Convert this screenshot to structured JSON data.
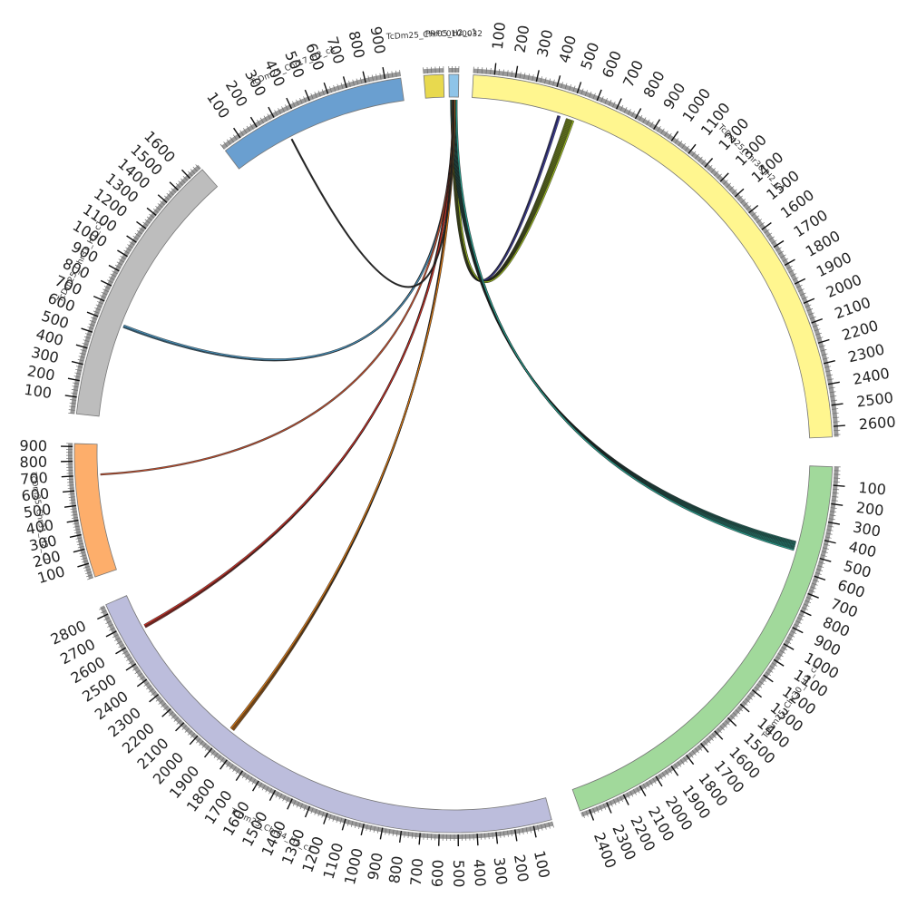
{
  "segments": [
    {
      "id": "chr30_h2",
      "name": "TcDm25_Chr30_H2_c1",
      "length": 2650,
      "major_step": 100,
      "color": "#fff68f"
    },
    {
      "id": "chr30_h1",
      "name": "TcDm25_Chr30_H1_c1",
      "length": 2450,
      "major_step": 100,
      "color": "#a1d99b"
    },
    {
      "id": "chr04_h1",
      "name": "TcDm25_Chr04_H1_c1",
      "length": 2850,
      "major_step": 100,
      "color": "#bcbddc"
    },
    {
      "id": "chr31_h2",
      "name": "TcDm25_Chr31_H2_c1",
      "length": 920,
      "major_step": 100,
      "color": "#fdae6b"
    },
    {
      "id": "chr31_h1",
      "name": "TcDm25_Chr31_H1_c1",
      "length": 1690,
      "major_step": 100,
      "color": "#bdbdbd"
    },
    {
      "id": "chr17_h2",
      "name": "TcDm25_Chr17_H2_c1",
      "length": 980,
      "major_step": 100,
      "color": "#6a9fd0"
    },
    {
      "id": "chr05_h2",
      "name": "TcDm25_Chr05_H2_c1",
      "length": 100,
      "major_step": 0,
      "color": "#e8d94e"
    },
    {
      "id": "prfc",
      "name": "PRFC0100032",
      "length": 60,
      "major_step": 0,
      "color": "#8ec4e8"
    }
  ],
  "links": [
    {
      "source": "prfc",
      "source_pos": 30,
      "target": "chr30_h2",
      "target_pos": 450,
      "color": "#3a3a9a",
      "count": 3
    },
    {
      "source": "prfc",
      "source_pos": 30,
      "target": "chr30_h2",
      "target_pos": 510,
      "color": "#9ab820",
      "count": 10
    },
    {
      "source": "prfc",
      "source_pos": 30,
      "target": "chr30_h1",
      "target_pos": 470,
      "color": "#2a9a8a",
      "count": 12
    },
    {
      "source": "prfc",
      "source_pos": 30,
      "target": "chr31_h1",
      "target_pos": 600,
      "color": "#4a90b8",
      "count": 3
    },
    {
      "source": "prfc",
      "source_pos": 30,
      "target": "chr31_h2",
      "target_pos": 700,
      "color": "#b84a2a",
      "count": 1
    },
    {
      "source": "prfc",
      "source_pos": 30,
      "target": "chr04_h1",
      "target_pos": 2650,
      "color": "#c83228",
      "count": 4
    },
    {
      "source": "prfc",
      "source_pos": 30,
      "target": "chr04_h1",
      "target_pos": 1880,
      "color": "#d87a18",
      "count": 5
    },
    {
      "source": "prfc",
      "source_pos": 30,
      "target": "chr17_h2",
      "target_pos": 330,
      "color": "#222222",
      "count": 1
    }
  ]
}
